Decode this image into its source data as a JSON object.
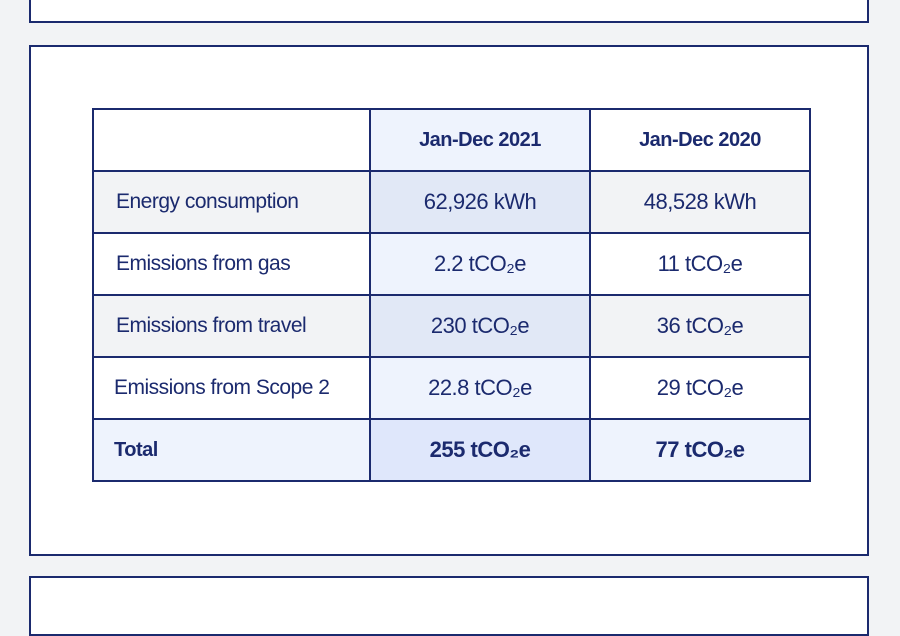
{
  "table": {
    "headers": [
      "",
      "Jan-Dec 2021",
      "Jan-Dec 2020"
    ],
    "rows": [
      {
        "label": "Energy consumption",
        "y2021": "62,926 kWh",
        "y2020": "48,528 kWh"
      },
      {
        "label": "Emissions from gas",
        "y2021": "2.2 tCO₂e",
        "y2020": "11 tCO₂e"
      },
      {
        "label": "Emissions from travel",
        "y2021": "230 tCO₂e",
        "y2020": "36 tCO₂e"
      },
      {
        "label": "Emissions from Scope 2",
        "y2021": "22.8 tCO₂e",
        "y2020": "29 tCO₂e"
      }
    ],
    "total": {
      "label": "Total",
      "y2021": "255 tCO₂e",
      "y2020": "77 tCO₂e"
    }
  },
  "colors": {
    "border": "#1b2a6e",
    "highlight": "#eef3fd",
    "alt_row": "#f2f3f5"
  }
}
